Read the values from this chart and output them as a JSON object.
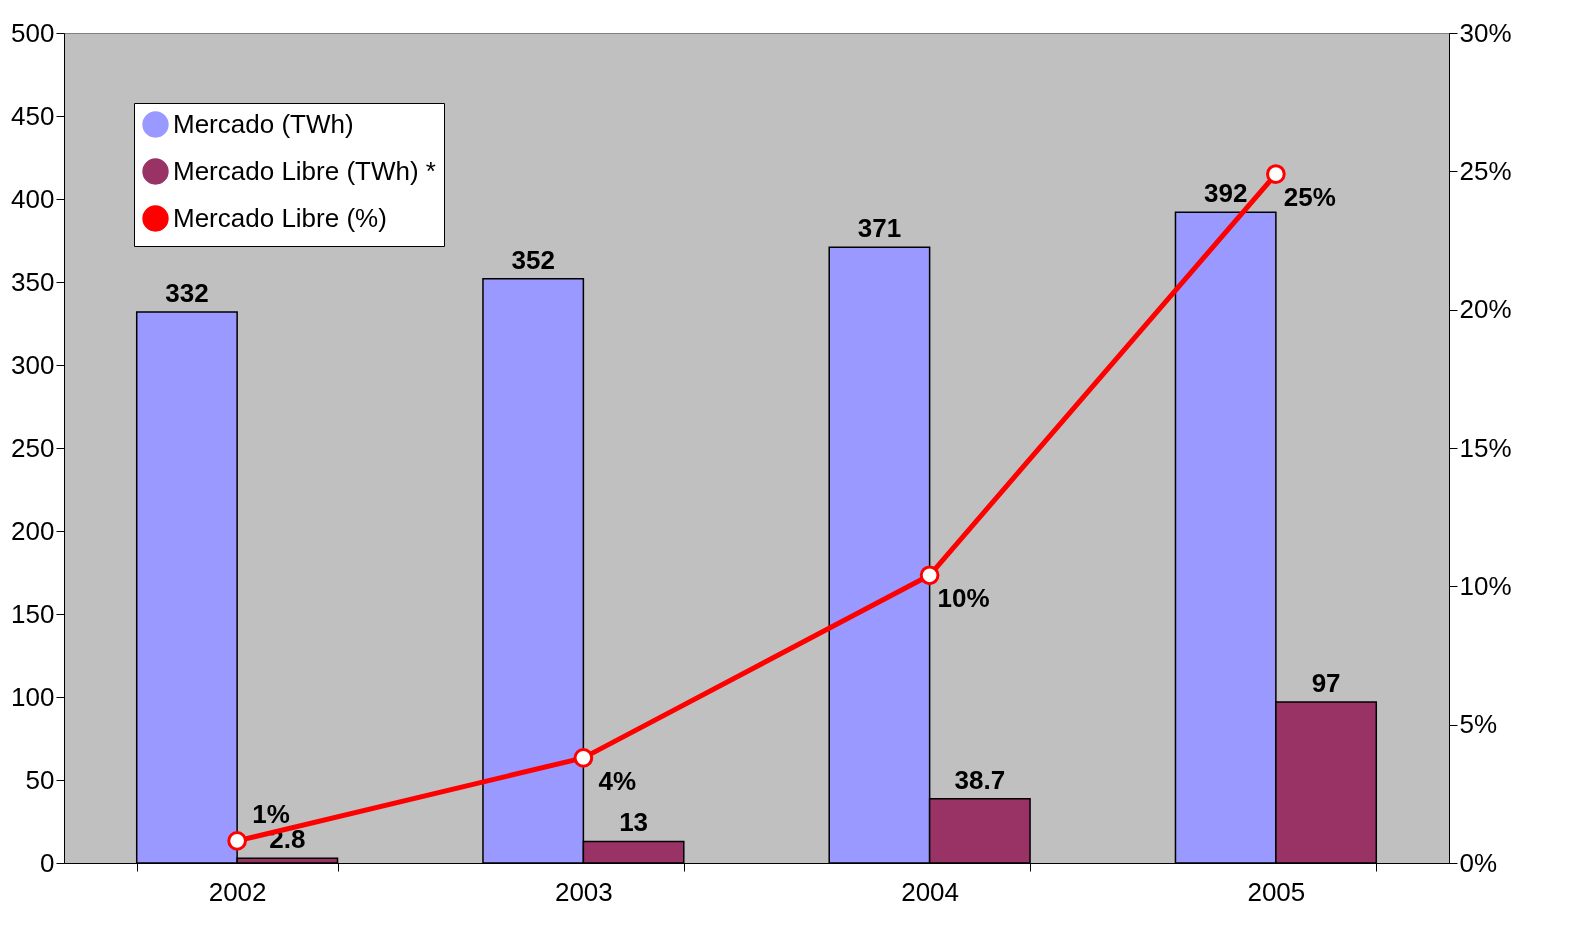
{
  "chart_data": {
    "type": "bar",
    "categories": [
      "2002",
      "2003",
      "2004",
      "2005"
    ],
    "series": [
      {
        "name": "Mercado (TWh)",
        "color": "#9999ff",
        "values": [
          332,
          352,
          371,
          392
        ]
      },
      {
        "name": "Mercado Libre (TWh) *",
        "color": "#993366",
        "values": [
          2.8,
          13,
          38.7,
          97
        ]
      },
      {
        "name": "Mercado Libre (%)",
        "type": "line",
        "axis": "y2",
        "color": "#ff0000",
        "values": [
          0.8,
          3.8,
          10.4,
          24.9
        ],
        "value_labels": [
          "1%",
          "4%",
          "10%",
          "25%"
        ]
      }
    ],
    "data_labels": true,
    "ylim": [
      0,
      500
    ],
    "yticks": [
      0,
      50,
      100,
      150,
      200,
      250,
      300,
      350,
      400,
      450,
      500
    ],
    "y2lim": [
      0,
      30
    ],
    "y2ticks": [
      {
        "value": 0,
        "label": "0%"
      },
      {
        "value": 5,
        "label": "5%"
      },
      {
        "value": 10,
        "label": "10%"
      },
      {
        "value": 15,
        "label": "15%"
      },
      {
        "value": 20,
        "label": "20%"
      },
      {
        "value": 25,
        "label": "25%"
      },
      {
        "value": 30,
        "label": "30%"
      }
    ],
    "grid": false,
    "legend": "top left",
    "marker": "circle"
  }
}
